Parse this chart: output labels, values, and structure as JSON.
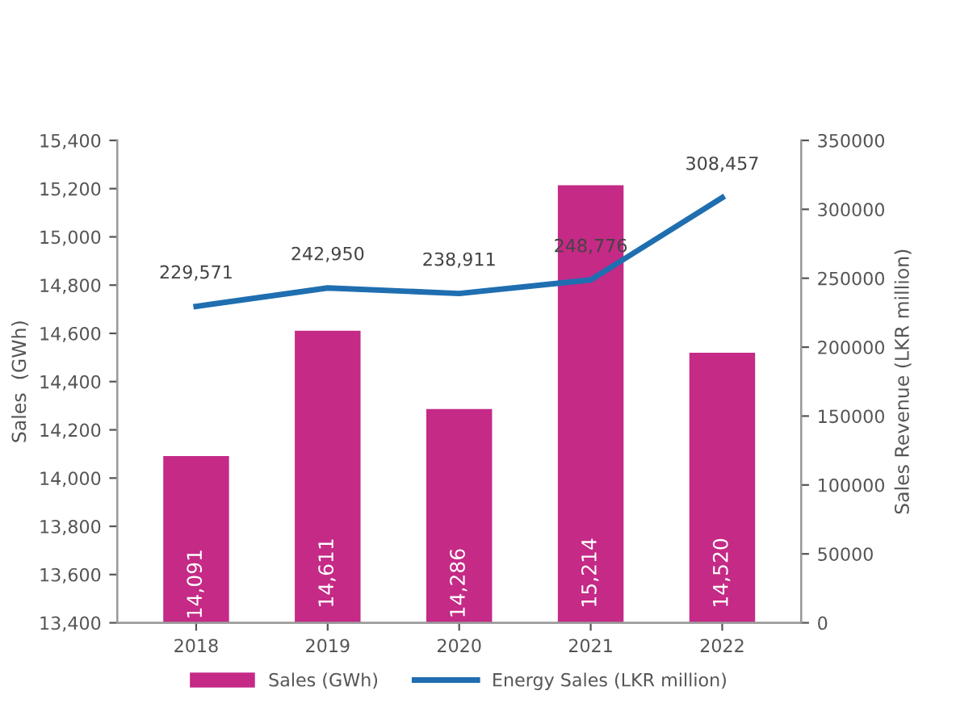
{
  "chart_data": {
    "type": "bar",
    "categories": [
      "2018",
      "2019",
      "2020",
      "2021",
      "2022"
    ],
    "ylabel": "Sales  (GWh)",
    "y2label": "Sales Revenue (LKR million)",
    "ylim": [
      13400,
      15400
    ],
    "yticks": [
      {
        "value": 13400,
        "label": "13,400"
      },
      {
        "value": 13600,
        "label": "13,600"
      },
      {
        "value": 13800,
        "label": "13,800"
      },
      {
        "value": 14000,
        "label": "14,000"
      },
      {
        "value": 14200,
        "label": "14,200"
      },
      {
        "value": 14400,
        "label": "14,400"
      },
      {
        "value": 14600,
        "label": "14,600"
      },
      {
        "value": 14800,
        "label": "14,800"
      },
      {
        "value": 15000,
        "label": "15,000"
      },
      {
        "value": 15200,
        "label": "15,200"
      },
      {
        "value": 15400,
        "label": "15,400"
      }
    ],
    "y2lim": [
      0,
      350000
    ],
    "y2ticks": [
      0,
      50000,
      100000,
      150000,
      200000,
      250000,
      300000,
      350000
    ],
    "series": [
      {
        "name": "Sales (GWh)",
        "color": "#c42a86",
        "values": [
          14091,
          14611,
          14286,
          15214,
          14520
        ],
        "value_labels": [
          "14,091",
          "14,611",
          "14,286",
          "15,214",
          "14,520"
        ]
      },
      {
        "name": "Energy Sales (LKR million)",
        "type": "line",
        "axis": "y2",
        "color": "#1f6eb0",
        "values": [
          229571,
          242950,
          238911,
          248776,
          308457
        ],
        "value_labels": [
          "229,571",
          "242,950",
          "238,911",
          "248,776",
          "308,457"
        ]
      }
    ],
    "grid": false,
    "legend": "bottom",
    "marker": "none",
    "line_style": "solid"
  }
}
